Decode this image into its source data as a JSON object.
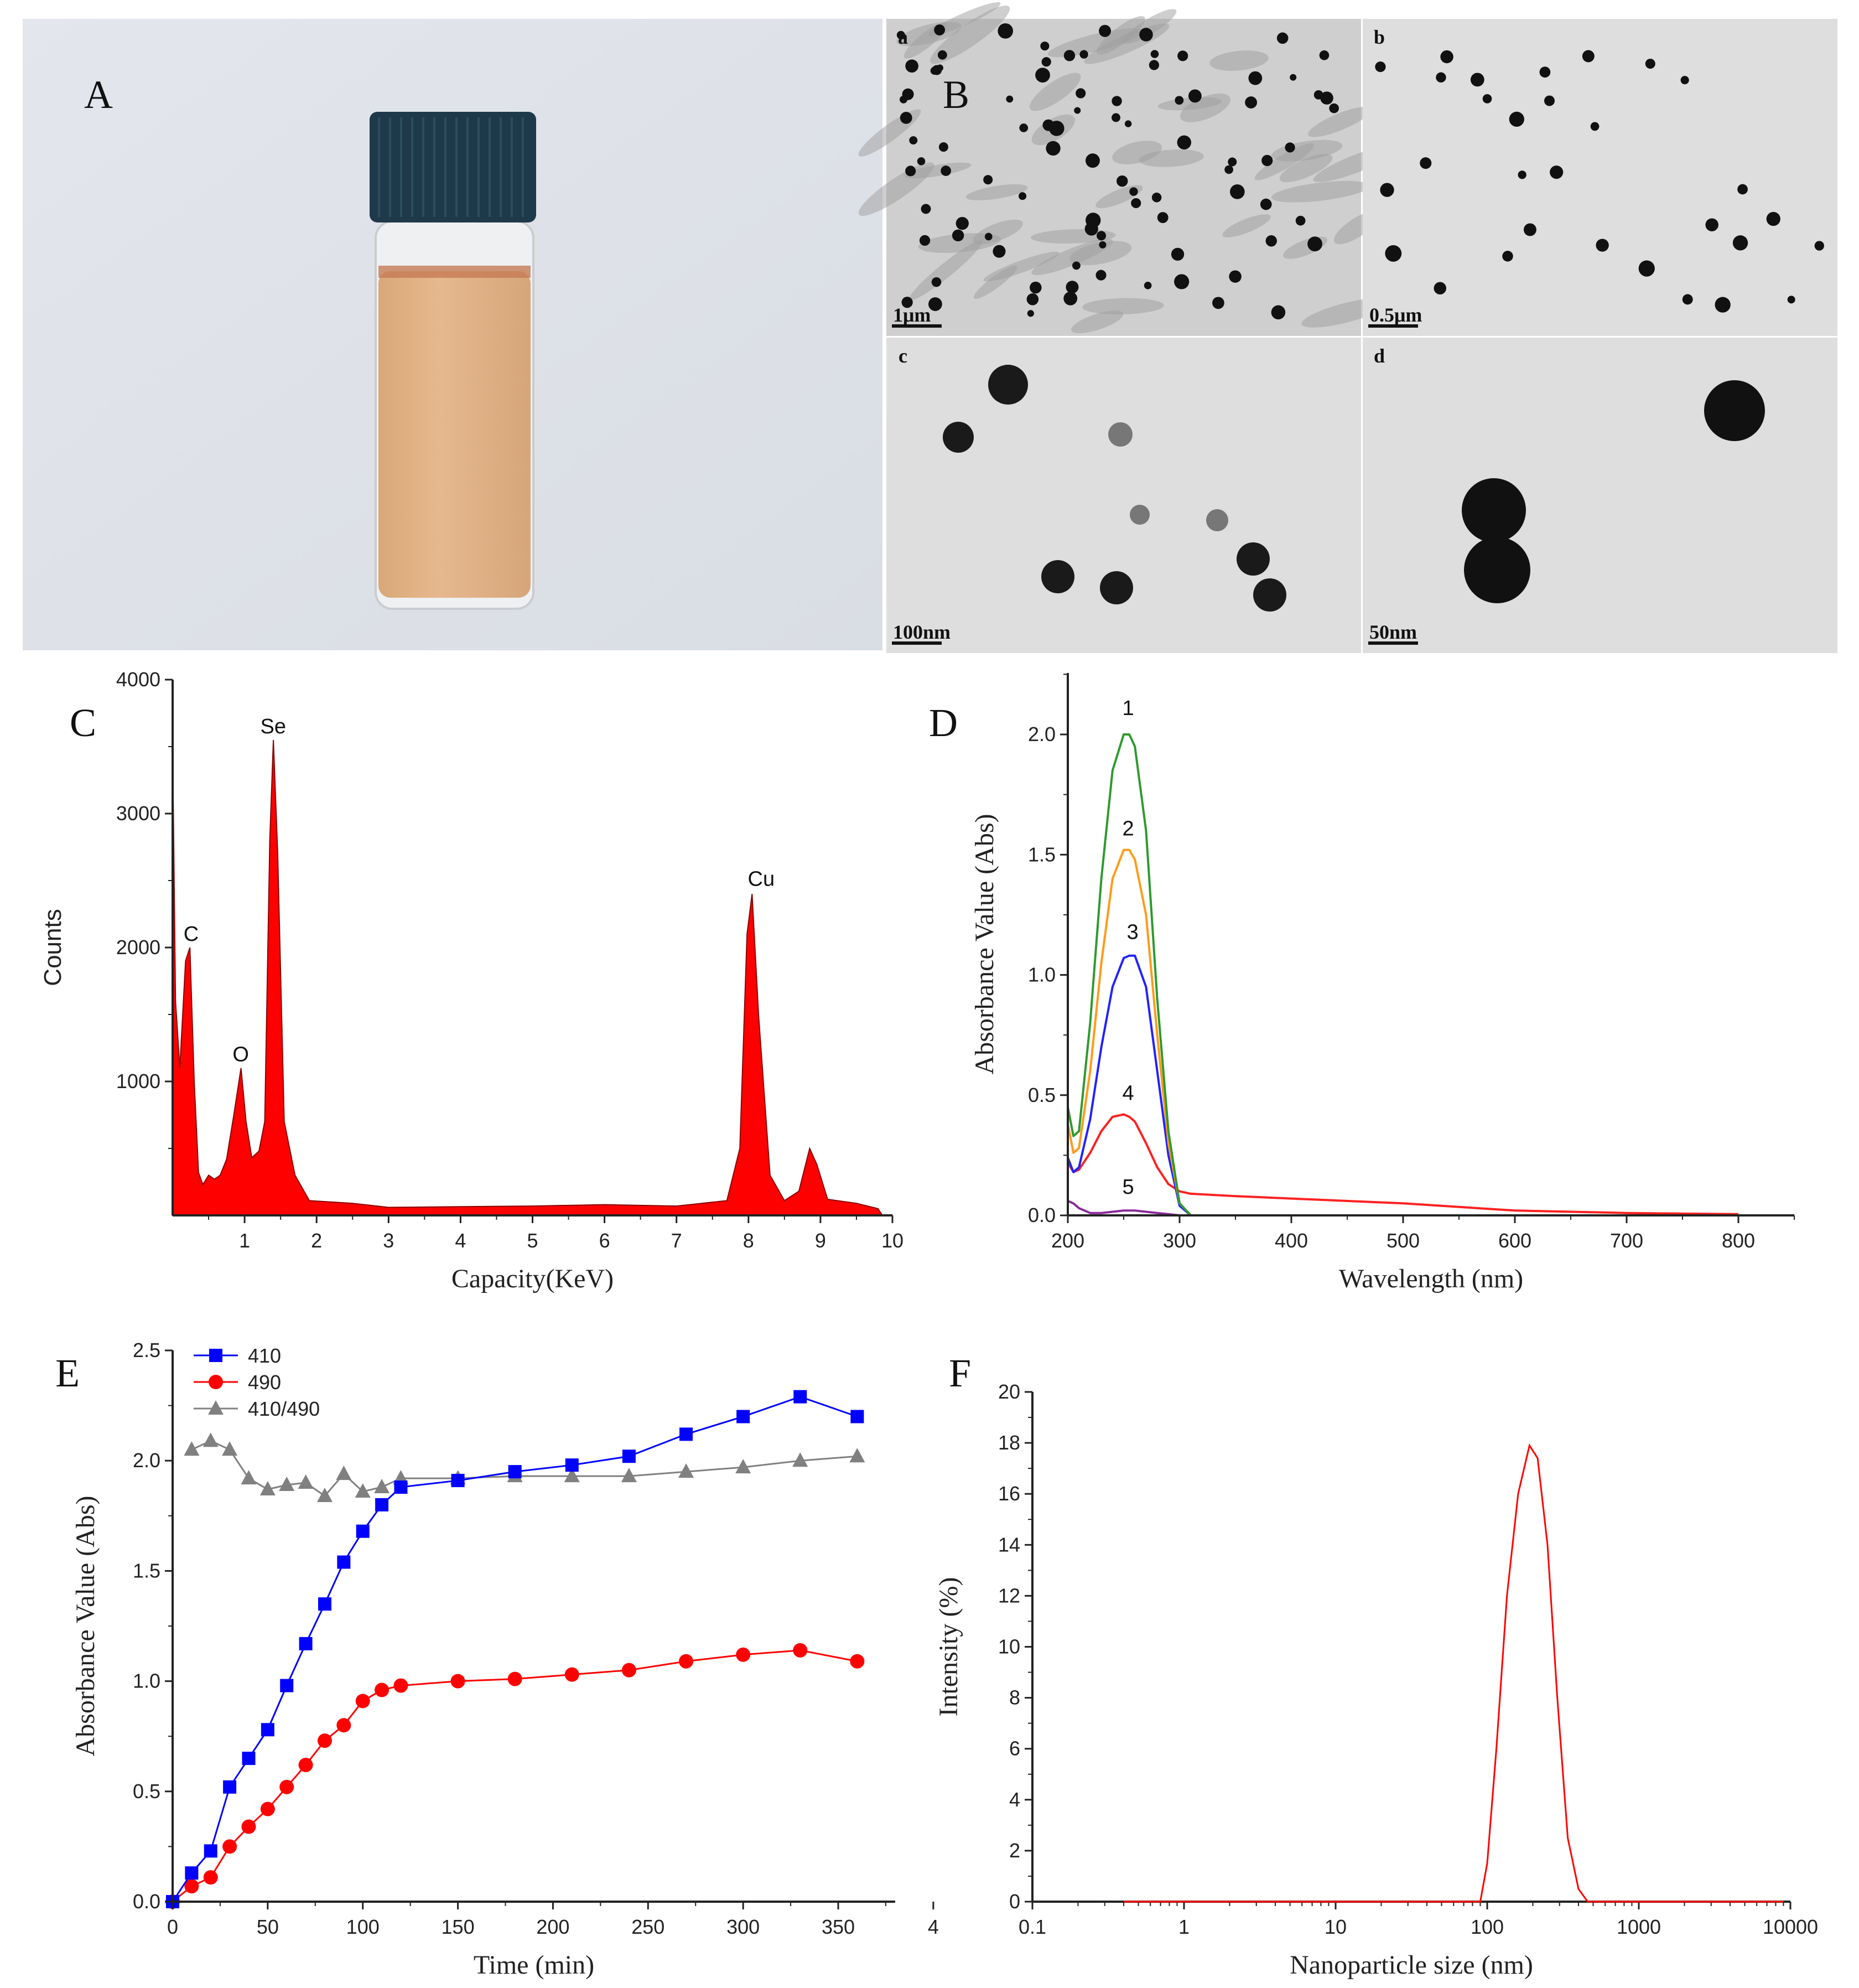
{
  "panels": {
    "A": {
      "label": "A",
      "liquid_color": "#e6b88e",
      "cap_color": "#1e3a4a"
    },
    "B": {
      "label": "B",
      "subpanels": [
        {
          "label": "a",
          "scale_bar": "1μm"
        },
        {
          "label": "b",
          "scale_bar": "0.5μm"
        },
        {
          "label": "c",
          "scale_bar": "100nm"
        },
        {
          "label": "d",
          "scale_bar": "50nm"
        }
      ]
    }
  },
  "chart_data": [
    {
      "panel": "C",
      "type": "area",
      "xlabel": "Capacity(KeV)",
      "ylabel": "Counts",
      "xlim": [
        0,
        10
      ],
      "ylim": [
        0,
        4000
      ],
      "x_ticks": [
        "1",
        "2",
        "3",
        "4",
        "5",
        "6",
        "7",
        "8",
        "9",
        "10"
      ],
      "y_ticks": [
        "1000",
        "2000",
        "3000",
        "4000"
      ],
      "color": "#ff0000",
      "points": [
        [
          0,
          3500
        ],
        [
          0.04,
          1600
        ],
        [
          0.1,
          1100
        ],
        [
          0.18,
          1900
        ],
        [
          0.24,
          2000
        ],
        [
          0.3,
          1000
        ],
        [
          0.36,
          320
        ],
        [
          0.42,
          230
        ],
        [
          0.5,
          300
        ],
        [
          0.58,
          270
        ],
        [
          0.66,
          300
        ],
        [
          0.75,
          420
        ],
        [
          0.85,
          750
        ],
        [
          0.95,
          1100
        ],
        [
          1.02,
          700
        ],
        [
          1.1,
          430
        ],
        [
          1.2,
          480
        ],
        [
          1.28,
          700
        ],
        [
          1.35,
          2800
        ],
        [
          1.4,
          3550
        ],
        [
          1.46,
          2700
        ],
        [
          1.55,
          700
        ],
        [
          1.7,
          300
        ],
        [
          1.9,
          110
        ],
        [
          2.5,
          90
        ],
        [
          3,
          60
        ],
        [
          4,
          65
        ],
        [
          5,
          70
        ],
        [
          6,
          80
        ],
        [
          7,
          70
        ],
        [
          7.7,
          110
        ],
        [
          7.88,
          500
        ],
        [
          7.98,
          2100
        ],
        [
          8.05,
          2400
        ],
        [
          8.14,
          1500
        ],
        [
          8.3,
          300
        ],
        [
          8.5,
          110
        ],
        [
          8.7,
          180
        ],
        [
          8.85,
          500
        ],
        [
          8.95,
          380
        ],
        [
          9.1,
          120
        ],
        [
          9.5,
          90
        ],
        [
          9.8,
          50
        ],
        [
          9.86,
          0
        ]
      ],
      "annotations": [
        {
          "text": "C",
          "x": 0.18,
          "y": 2050
        },
        {
          "text": "O",
          "x": 0.87,
          "y": 1150
        },
        {
          "text": "Se",
          "x": 1.32,
          "y": 3600
        },
        {
          "text": "Cu",
          "x": 8.1,
          "y": 2460
        }
      ]
    },
    {
      "panel": "D",
      "type": "line",
      "xlabel": "Wavelength (nm)",
      "ylabel": "Absorbance Value (Abs)",
      "xlim": [
        200,
        850
      ],
      "ylim": [
        0,
        2.25
      ],
      "x_ticks": [
        "200",
        "300",
        "400",
        "500",
        "600",
        "700",
        "800"
      ],
      "y_ticks": [
        "0.0",
        "0.5",
        "1.0",
        "1.5",
        "2.0"
      ],
      "x": [
        200,
        205,
        210,
        220,
        230,
        240,
        250,
        255,
        260,
        270,
        280,
        290,
        300,
        310,
        350,
        400,
        500,
        600,
        700,
        800
      ],
      "series": [
        {
          "name": "1",
          "color": "#2e9a2e",
          "values": [
            0.45,
            0.33,
            0.35,
            0.8,
            1.4,
            1.85,
            2.0,
            2.0,
            1.95,
            1.6,
            0.9,
            0.35,
            0.05,
            0,
            0,
            0,
            0,
            0,
            0,
            0
          ]
        },
        {
          "name": "2",
          "color": "#ff9a1a",
          "values": [
            0.38,
            0.26,
            0.28,
            0.6,
            1.05,
            1.4,
            1.52,
            1.52,
            1.48,
            1.25,
            0.75,
            0.3,
            0.05,
            0,
            0,
            0,
            0,
            0,
            0,
            0
          ]
        },
        {
          "name": "3",
          "color": "#2222ff",
          "values": [
            0.24,
            0.18,
            0.2,
            0.4,
            0.7,
            0.95,
            1.07,
            1.08,
            1.08,
            0.95,
            0.6,
            0.25,
            0.04,
            0,
            0,
            0,
            0,
            0,
            0,
            0
          ]
        },
        {
          "name": "4",
          "color": "#ff2020",
          "values": [
            0.22,
            0.18,
            0.19,
            0.26,
            0.35,
            0.41,
            0.42,
            0.41,
            0.39,
            0.3,
            0.2,
            0.13,
            0.1,
            0.09,
            0.08,
            0.07,
            0.05,
            0.02,
            0.01,
            0.005
          ]
        },
        {
          "name": "5",
          "color": "#8a2a9a",
          "values": [
            0.06,
            0.05,
            0.03,
            0.01,
            0.01,
            0.015,
            0.02,
            0.02,
            0.02,
            0.015,
            0.01,
            0.005,
            0,
            0,
            0,
            0,
            0,
            0,
            0,
            0
          ]
        }
      ],
      "curve_labels": [
        {
          "text": "1",
          "x": 254,
          "y": 2.08
        },
        {
          "text": "2",
          "x": 254,
          "y": 1.58
        },
        {
          "text": "3",
          "x": 258,
          "y": 1.15
        },
        {
          "text": "4",
          "x": 254,
          "y": 0.48
        },
        {
          "text": "5",
          "x": 254,
          "y": 0.09
        }
      ]
    },
    {
      "panel": "E",
      "type": "line",
      "xlabel": "Time (min)",
      "ylabel": "Absorbance Value (Abs)",
      "xlim": [
        0,
        400
      ],
      "ylim": [
        0,
        2.5
      ],
      "x_ticks": [
        "0",
        "50",
        "100",
        "150",
        "200",
        "250",
        "300",
        "350",
        "4"
      ],
      "y_ticks": [
        "0.0",
        "0.5",
        "1.0",
        "1.5",
        "2.0",
        "2.5"
      ],
      "legend": "top-left",
      "series": [
        {
          "name": "410",
          "color": "#0000ff",
          "marker": "square",
          "x": [
            0,
            10,
            20,
            30,
            40,
            50,
            60,
            70,
            80,
            90,
            100,
            110,
            120,
            150,
            180,
            210,
            240,
            270,
            300,
            330,
            360
          ],
          "values": [
            0,
            0.13,
            0.23,
            0.52,
            0.65,
            0.78,
            0.98,
            1.17,
            1.35,
            1.54,
            1.68,
            1.8,
            1.88,
            1.91,
            1.95,
            1.98,
            2.02,
            2.12,
            2.2,
            2.29,
            2.2
          ]
        },
        {
          "name": "490",
          "color": "#ff0000",
          "marker": "circle",
          "x": [
            0,
            10,
            20,
            30,
            40,
            50,
            60,
            70,
            80,
            90,
            100,
            110,
            120,
            150,
            180,
            210,
            240,
            270,
            300,
            330,
            360
          ],
          "values": [
            0,
            0.07,
            0.11,
            0.25,
            0.34,
            0.42,
            0.52,
            0.62,
            0.73,
            0.8,
            0.91,
            0.96,
            0.98,
            1.0,
            1.01,
            1.03,
            1.05,
            1.09,
            1.12,
            1.14,
            1.09
          ]
        },
        {
          "name": "410/490",
          "color": "#808080",
          "marker": "triangle",
          "x": [
            10,
            20,
            30,
            40,
            50,
            60,
            70,
            80,
            90,
            100,
            110,
            120,
            150,
            180,
            210,
            240,
            270,
            300,
            330,
            360
          ],
          "values": [
            2.05,
            2.09,
            2.05,
            1.92,
            1.87,
            1.89,
            1.9,
            1.84,
            1.94,
            1.86,
            1.88,
            1.92,
            1.92,
            1.93,
            1.93,
            1.93,
            1.95,
            1.97,
            2.0,
            2.02
          ]
        }
      ]
    },
    {
      "panel": "F",
      "type": "line",
      "xlabel": "Nanoparticle size (nm)",
      "ylabel": "Intensity (%)",
      "xscale": "log",
      "xlim": [
        0.1,
        10000
      ],
      "ylim": [
        0,
        20
      ],
      "x_ticks": [
        "0.1",
        "1",
        "10",
        "100",
        "1000",
        "10000"
      ],
      "y_ticks": [
        "0",
        "2",
        "4",
        "6",
        "8",
        "10",
        "12",
        "14",
        "16",
        "18",
        "20"
      ],
      "color": "#ff0000",
      "x": [
        0.4,
        90,
        100,
        115,
        135,
        160,
        190,
        215,
        250,
        290,
        340,
        400,
        460,
        9000
      ],
      "values": [
        0,
        0,
        1.5,
        6,
        12,
        16,
        17.9,
        17.4,
        14,
        8,
        2.5,
        0.5,
        0,
        0
      ]
    }
  ]
}
